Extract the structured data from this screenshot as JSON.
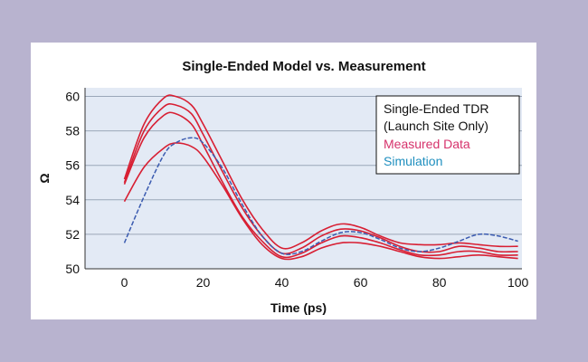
{
  "colors": {
    "page_background": "#b8b3cf",
    "plot_background": "#e3eaf5",
    "grid": "#9aa7b8",
    "measured": "#d81f33",
    "simulation": "#3b5bb0",
    "legend_measured_text": "#d6336c",
    "legend_simulation_text": "#1f8fbf"
  },
  "chart_data": {
    "type": "line",
    "title": "Single-Ended Model vs. Measurement",
    "xlabel": "Time (ps)",
    "ylabel": "Ω",
    "xlim": [
      -10,
      101
    ],
    "ylim": [
      50,
      60.5
    ],
    "xticks": [
      "0",
      "20",
      "40",
      "60",
      "80",
      "100"
    ],
    "yticks": [
      "50",
      "52",
      "54",
      "56",
      "58",
      "60"
    ],
    "grid": "horizontal",
    "legend": {
      "placement": "top-right",
      "lines": [
        "Single-Ended TDR",
        "(Launch Site Only)",
        "Measured Data",
        "Simulation"
      ]
    },
    "x": [
      0,
      5,
      10,
      13,
      17,
      20,
      25,
      30,
      35,
      40,
      45,
      50,
      55,
      60,
      65,
      70,
      75,
      80,
      85,
      90,
      95,
      100
    ],
    "series": [
      {
        "group": "Measured Data",
        "values": [
          55.2,
          58.4,
          59.9,
          60.0,
          59.5,
          58.4,
          56.2,
          54.0,
          52.3,
          51.2,
          51.5,
          52.2,
          52.6,
          52.4,
          51.9,
          51.5,
          51.4,
          51.4,
          51.5,
          51.4,
          51.3,
          51.3
        ]
      },
      {
        "group": "Measured Data",
        "values": [
          55.0,
          58.0,
          59.4,
          59.5,
          59.0,
          57.8,
          55.6,
          53.5,
          51.9,
          50.9,
          51.2,
          51.9,
          52.3,
          52.2,
          51.8,
          51.3,
          51.0,
          51.0,
          51.3,
          51.2,
          51.0,
          51.0
        ]
      },
      {
        "group": "Measured Data",
        "values": [
          54.9,
          57.6,
          58.9,
          59.0,
          58.4,
          57.2,
          55.0,
          53.0,
          51.6,
          50.7,
          50.9,
          51.5,
          51.9,
          51.8,
          51.5,
          51.1,
          50.8,
          50.8,
          51.0,
          51.0,
          50.8,
          50.8
        ]
      },
      {
        "group": "Measured Data",
        "values": [
          53.9,
          55.9,
          57.0,
          57.3,
          57.1,
          56.5,
          54.8,
          52.9,
          51.4,
          50.6,
          50.7,
          51.2,
          51.5,
          51.5,
          51.3,
          51.0,
          50.7,
          50.6,
          50.7,
          50.8,
          50.7,
          50.6
        ]
      },
      {
        "group": "Simulation",
        "values": [
          51.5,
          54.2,
          56.6,
          57.3,
          57.6,
          57.3,
          55.8,
          53.7,
          51.9,
          50.9,
          51.0,
          51.6,
          52.1,
          52.1,
          51.7,
          51.2,
          51.0,
          51.2,
          51.6,
          52.0,
          51.9,
          51.6
        ]
      }
    ]
  }
}
